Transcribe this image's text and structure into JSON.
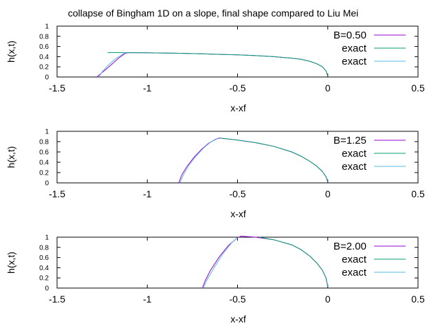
{
  "title": "collapse of Bingham 1D on a slope, final shape compared to Liu   Mei",
  "chart_data": [
    {
      "type": "line",
      "xlabel": "x-xf",
      "ylabel": "h(x,t)",
      "xlim": [
        -1.5,
        0.5
      ],
      "ylim": [
        0,
        1
      ],
      "xticks": [
        "-1.5",
        "-1",
        "-0.5",
        "0",
        "0.5"
      ],
      "yticks": [
        "0",
        "0.2",
        "0.4",
        "0.6",
        "0.8",
        "1"
      ],
      "legend_position": "top-right",
      "series": [
        {
          "name": "B=0.50",
          "color": "#9400d3",
          "x": [
            -1.28,
            -1.24,
            -1.2,
            -1.16,
            -1.12,
            -1.1,
            -1.0,
            -0.9,
            -0.8,
            -0.7,
            -0.6,
            -0.5,
            -0.4,
            -0.3,
            -0.2,
            -0.15,
            -0.1,
            -0.06,
            -0.03,
            -0.01,
            0.0
          ],
          "y": [
            0.0,
            0.12,
            0.24,
            0.37,
            0.47,
            0.48,
            0.475,
            0.47,
            0.465,
            0.455,
            0.445,
            0.435,
            0.42,
            0.4,
            0.37,
            0.35,
            0.31,
            0.26,
            0.2,
            0.12,
            0.02
          ]
        },
        {
          "name": "exact",
          "color": "#009e73",
          "x": [
            -1.22,
            -1.1,
            -1.0,
            -0.9,
            -0.8,
            -0.7,
            -0.6,
            -0.5,
            -0.4,
            -0.3,
            -0.2,
            -0.15,
            -0.1,
            -0.06,
            -0.03,
            -0.01,
            0.0
          ],
          "y": [
            0.48,
            0.478,
            0.475,
            0.47,
            0.465,
            0.455,
            0.445,
            0.435,
            0.42,
            0.4,
            0.37,
            0.35,
            0.31,
            0.26,
            0.2,
            0.12,
            0.02
          ]
        },
        {
          "name": "exact",
          "color": "#56b4e9",
          "x": [
            -1.27,
            -1.25,
            -1.22,
            -1.18,
            -1.14,
            -1.12
          ],
          "y": [
            0.0,
            0.1,
            0.22,
            0.35,
            0.44,
            0.48
          ]
        }
      ]
    },
    {
      "type": "line",
      "xlabel": "x-xf",
      "ylabel": "h(x,t)",
      "xlim": [
        -1.5,
        0.5
      ],
      "ylim": [
        0,
        1
      ],
      "xticks": [
        "-1.5",
        "-1",
        "-0.5",
        "0",
        "0.5"
      ],
      "yticks": [
        "0",
        "0.2",
        "0.4",
        "0.6",
        "0.8",
        "1"
      ],
      "legend_position": "top-right",
      "series": [
        {
          "name": "B=1.25",
          "color": "#9400d3",
          "x": [
            -0.825,
            -0.81,
            -0.78,
            -0.74,
            -0.7,
            -0.66,
            -0.62,
            -0.6,
            -0.5,
            -0.4,
            -0.3,
            -0.2,
            -0.15,
            -0.1,
            -0.06,
            -0.03,
            -0.01,
            0.0
          ],
          "y": [
            0.0,
            0.15,
            0.32,
            0.5,
            0.65,
            0.77,
            0.85,
            0.87,
            0.83,
            0.78,
            0.71,
            0.6,
            0.52,
            0.42,
            0.32,
            0.22,
            0.12,
            0.02
          ]
        },
        {
          "name": "exact",
          "color": "#009e73",
          "x": [
            -0.6,
            -0.5,
            -0.4,
            -0.3,
            -0.2,
            -0.15,
            -0.1,
            -0.06,
            -0.03,
            -0.01,
            0.0
          ],
          "y": [
            0.87,
            0.83,
            0.78,
            0.71,
            0.6,
            0.52,
            0.42,
            0.32,
            0.22,
            0.12,
            0.02
          ]
        },
        {
          "name": "exact",
          "color": "#56b4e9",
          "x": [
            -0.82,
            -0.8,
            -0.77,
            -0.73,
            -0.69,
            -0.65,
            -0.61
          ],
          "y": [
            0.0,
            0.16,
            0.34,
            0.52,
            0.67,
            0.79,
            0.86
          ]
        }
      ]
    },
    {
      "type": "line",
      "xlabel": "x-xf",
      "ylabel": "h(x,t)",
      "xlim": [
        -1.5,
        0.5
      ],
      "ylim": [
        0,
        1
      ],
      "xticks": [
        "-1.5",
        "-1",
        "-0.5",
        "0",
        "0.5"
      ],
      "yticks": [
        "0",
        "0.2",
        "0.4",
        "0.6",
        "0.8",
        "1"
      ],
      "legend_position": "top-right",
      "series": [
        {
          "name": "B=2.00",
          "color": "#9400d3",
          "x": [
            -0.695,
            -0.68,
            -0.65,
            -0.6,
            -0.55,
            -0.5,
            -0.48,
            -0.4,
            -0.3,
            -0.2,
            -0.15,
            -0.1,
            -0.06,
            -0.03,
            -0.01,
            0.0
          ],
          "y": [
            0.0,
            0.14,
            0.35,
            0.62,
            0.84,
            0.99,
            1.02,
            1.0,
            0.95,
            0.85,
            0.76,
            0.63,
            0.49,
            0.35,
            0.2,
            0.03
          ]
        },
        {
          "name": "exact",
          "color": "#009e73",
          "x": [
            -0.38,
            -0.3,
            -0.2,
            -0.15,
            -0.1,
            -0.06,
            -0.03,
            -0.01,
            0.0
          ],
          "y": [
            1.0,
            0.95,
            0.85,
            0.76,
            0.63,
            0.49,
            0.35,
            0.2,
            0.03
          ]
        },
        {
          "name": "exact",
          "color": "#56b4e9",
          "x": [
            -0.69,
            -0.67,
            -0.63,
            -0.58,
            -0.53,
            -0.5
          ],
          "y": [
            0.0,
            0.16,
            0.4,
            0.68,
            0.9,
            0.99
          ]
        }
      ]
    }
  ]
}
